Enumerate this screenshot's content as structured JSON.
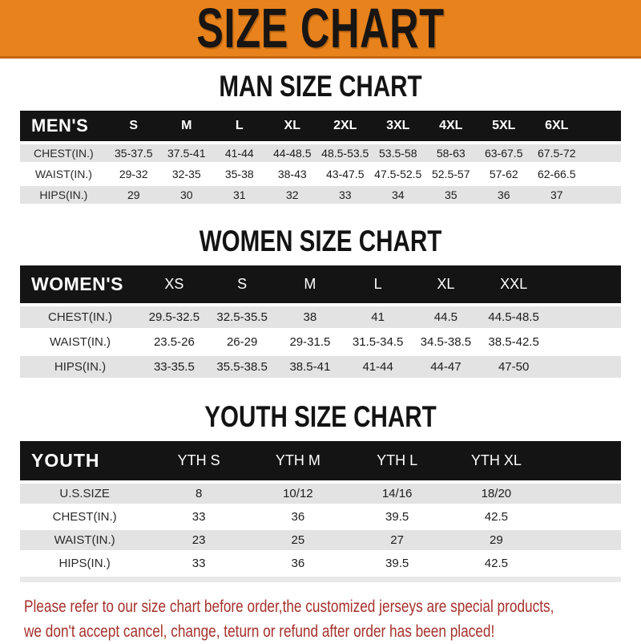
{
  "banner": {
    "title": "SIZE CHART"
  },
  "sections": [
    {
      "heading": "MAN SIZE CHART",
      "label": "MEN'S",
      "columns": [
        "S",
        "M",
        "L",
        "XL",
        "2XL",
        "3XL",
        "4XL",
        "5XL",
        "6XL"
      ],
      "rows": [
        {
          "label": "CHEST(IN.)",
          "values": [
            "35-37.5",
            "37.5-41",
            "41-44",
            "44-48.5",
            "48.5-53.5",
            "53.5-58",
            "58-63",
            "63-67.5",
            "67.5-72"
          ]
        },
        {
          "label": "WAIST(IN.)",
          "values": [
            "29-32",
            "32-35",
            "35-38",
            "38-43",
            "43-47.5",
            "47.5-52.5",
            "52.5-57",
            "57-62",
            "62-66.5"
          ]
        },
        {
          "label": "HIPS(IN.)",
          "values": [
            "29",
            "30",
            "31",
            "32",
            "33",
            "34",
            "35",
            "36",
            "37"
          ]
        }
      ]
    },
    {
      "heading": "WOMEN SIZE CHART",
      "label": "WOMEN'S",
      "columns": [
        "XS",
        "S",
        "M",
        "L",
        "XL",
        "XXL"
      ],
      "rows": [
        {
          "label": "CHEST(IN.)",
          "values": [
            "29.5-32.5",
            "32.5-35.5",
            "38",
            "41",
            "44.5",
            "44.5-48.5"
          ]
        },
        {
          "label": "WAIST(IN.)",
          "values": [
            "23.5-26",
            "26-29",
            "29-31.5",
            "31.5-34.5",
            "34.5-38.5",
            "38.5-42.5"
          ]
        },
        {
          "label": "HIPS(IN.)",
          "values": [
            "33-35.5",
            "35.5-38.5",
            "38.5-41",
            "41-44",
            "44-47",
            "47-50"
          ]
        }
      ]
    },
    {
      "heading": "YOUTH SIZE CHART",
      "label": "YOUTH",
      "columns": [
        "YTH S",
        "YTH M",
        "YTH L",
        "YTH XL"
      ],
      "rows": [
        {
          "label": "U.S.SIZE",
          "values": [
            "8",
            "10/12",
            "14/16",
            "18/20"
          ]
        },
        {
          "label": "CHEST(IN.)",
          "values": [
            "33",
            "36",
            "39.5",
            "42.5"
          ]
        },
        {
          "label": "WAIST(IN.)",
          "values": [
            "23",
            "25",
            "27",
            "29"
          ]
        },
        {
          "label": "HIPS(IN.)",
          "values": [
            "33",
            "36",
            "39.5",
            "42.5"
          ]
        }
      ]
    }
  ],
  "footer": {
    "line1": "Please refer to our size chart before order,the customized jerseys are special products,",
    "line2": "we don't accept cancel, change, teturn or refund after order has been placed!"
  },
  "colors": {
    "banner_orange": "#E8821C",
    "banner_border": "#C4640A",
    "header_black": "#141414",
    "row_gray": "#E3E3E3",
    "footer_red": "#A5312B"
  }
}
